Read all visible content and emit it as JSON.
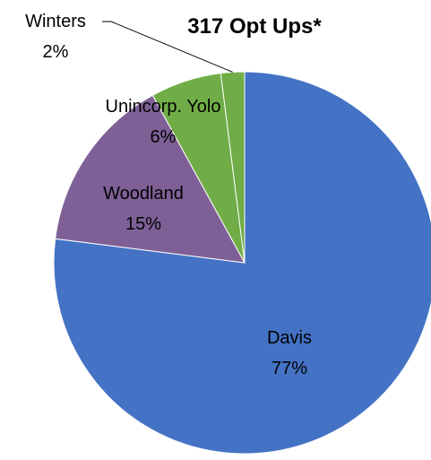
{
  "chart_data": {
    "type": "pie",
    "title": "317 Opt Ups*",
    "start_angle_deg": 0,
    "direction": "clockwise",
    "legend": "none",
    "slices": [
      {
        "label": "Davis",
        "percent_label": "77%",
        "value": 77,
        "color": "#4472C4"
      },
      {
        "label": "Woodland",
        "percent_label": "15%",
        "value": 15,
        "color": "#7E6096"
      },
      {
        "label": "Unincorp. Yolo",
        "percent_label": "6%",
        "value": 6,
        "color": "#70AD47"
      },
      {
        "label": "Winters",
        "percent_label": "2%",
        "value": 2,
        "color": "#70AD47"
      }
    ]
  }
}
